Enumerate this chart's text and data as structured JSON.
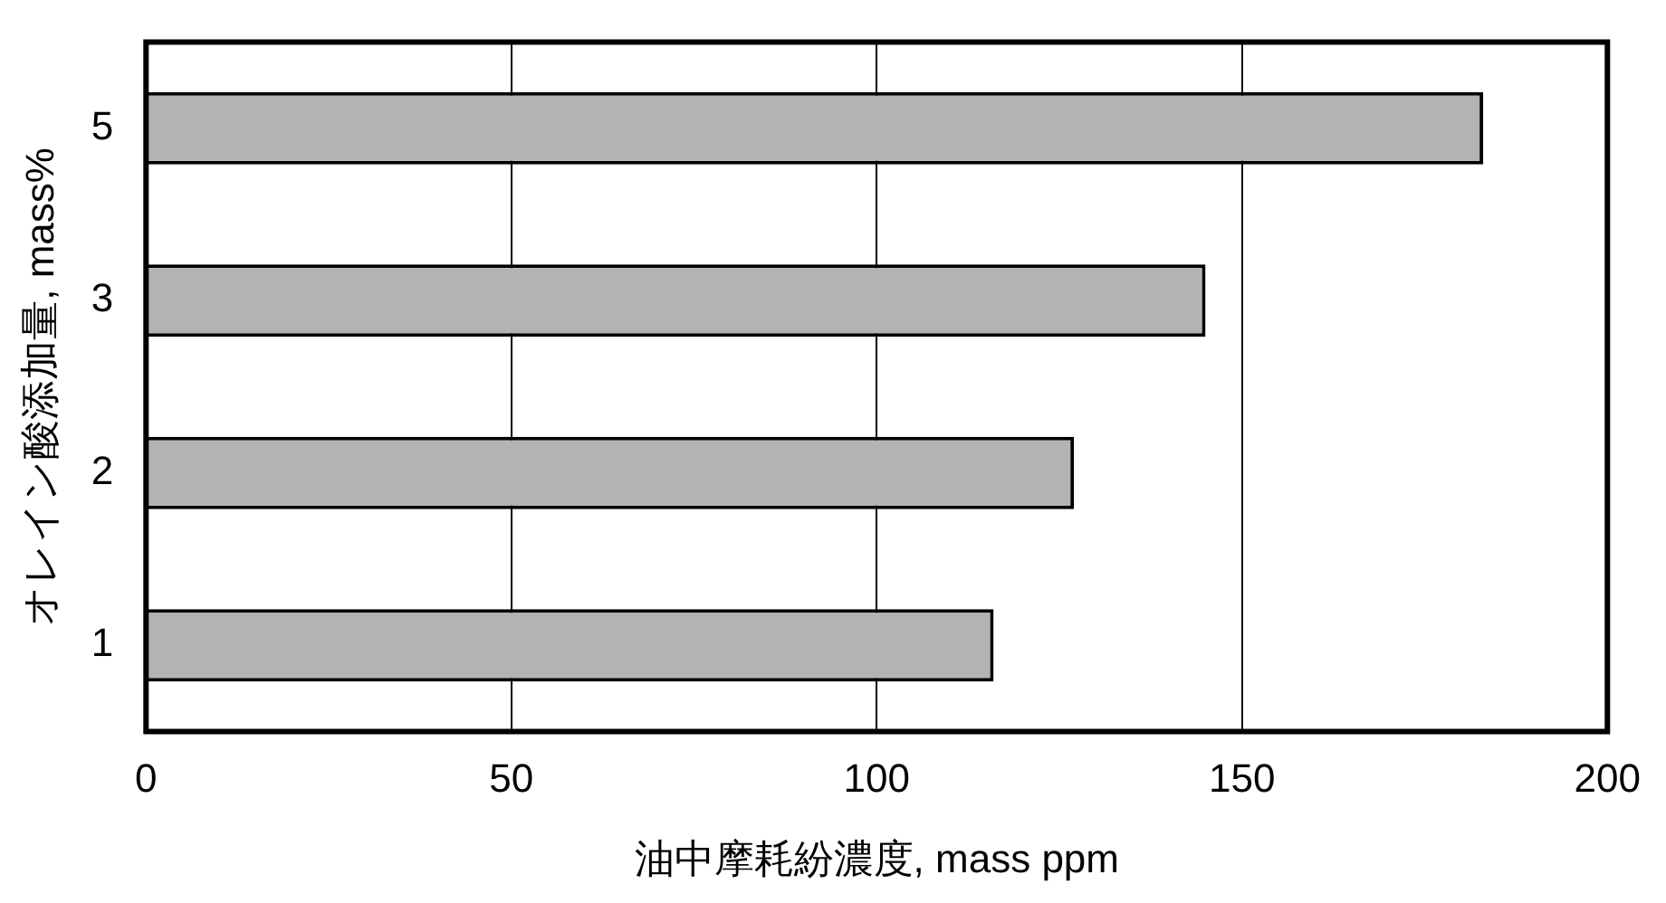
{
  "chart_data": {
    "type": "bar",
    "orientation": "horizontal",
    "xlabel": "油中摩耗紛濃度, mass ppm",
    "ylabel": "オレイン酸添加量, mass%",
    "categories": [
      "5",
      "3",
      "2",
      "1"
    ],
    "values": [
      183,
      145,
      127,
      116
    ],
    "color": "#b3b3b3",
    "xlim": [
      0,
      200
    ],
    "xticks": [
      0,
      50,
      100,
      150,
      200
    ],
    "grid": "x"
  }
}
